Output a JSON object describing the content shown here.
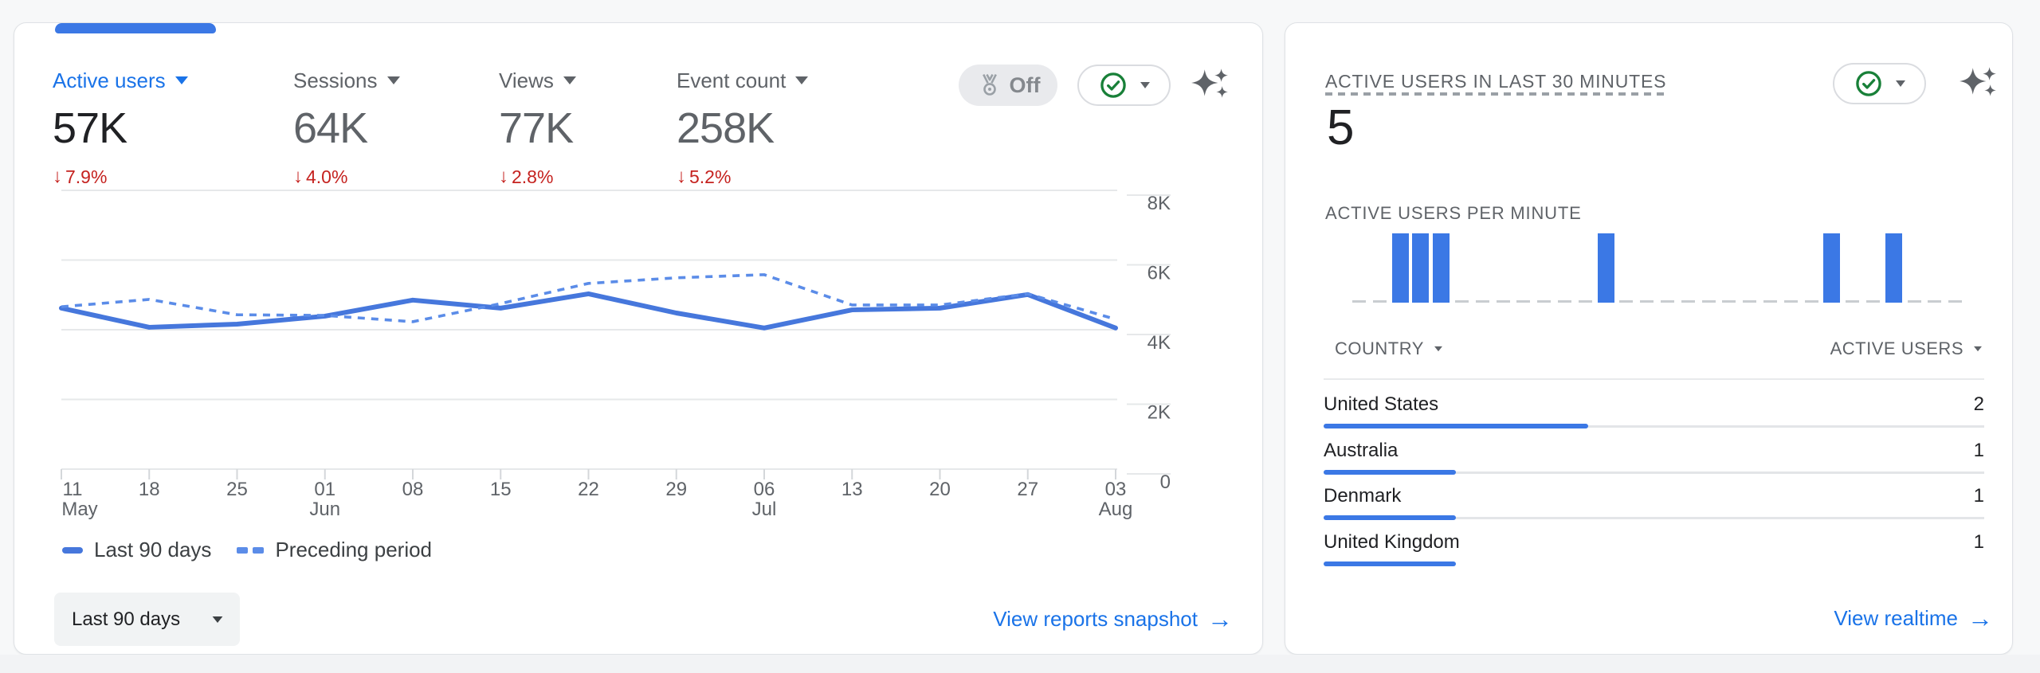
{
  "colors": {
    "accent_blue": "#1a73e8",
    "chart_line_solid": "#4677dc",
    "chart_line_dashed": "#5b8ce8",
    "realtime_bar_blue": "#3b78e5",
    "negative_red": "#c5221f",
    "check_green": "#188038",
    "text_dark": "#202124",
    "text_gray": "#5f6368"
  },
  "overview_card": {
    "metrics": [
      {
        "label": "Active users",
        "value": "57K",
        "delta": "7.9%",
        "direction": "down",
        "selected": true
      },
      {
        "label": "Sessions",
        "value": "64K",
        "delta": "4.0%",
        "direction": "down",
        "selected": false
      },
      {
        "label": "Views",
        "value": "77K",
        "delta": "2.8%",
        "direction": "down",
        "selected": false
      },
      {
        "label": "Event count",
        "value": "258K",
        "delta": "5.2%",
        "direction": "down",
        "selected": false
      }
    ],
    "benchmarking_badge": {
      "label": "Off",
      "icon": "medal-icon"
    },
    "data_quality_icon": "check-circle-icon",
    "insights_icon": "sparkles-icon",
    "chart_data": {
      "type": "line",
      "x_labels": [
        {
          "day": "11",
          "month": "May"
        },
        {
          "day": "18",
          "month": ""
        },
        {
          "day": "25",
          "month": ""
        },
        {
          "day": "01",
          "month": "Jun"
        },
        {
          "day": "08",
          "month": ""
        },
        {
          "day": "15",
          "month": ""
        },
        {
          "day": "22",
          "month": ""
        },
        {
          "day": "29",
          "month": ""
        },
        {
          "day": "06",
          "month": "Jul"
        },
        {
          "day": "13",
          "month": ""
        },
        {
          "day": "20",
          "month": ""
        },
        {
          "day": "27",
          "month": ""
        },
        {
          "day": "03",
          "month": "Aug"
        }
      ],
      "series": [
        {
          "name": "Last 90 days",
          "style": "solid",
          "values": [
            4620,
            4070,
            4160,
            4390,
            4850,
            4620,
            5030,
            4480,
            4050,
            4570,
            4620,
            5010,
            4050
          ]
        },
        {
          "name": "Preceding period",
          "style": "dashed",
          "values": [
            4660,
            4870,
            4430,
            4410,
            4230,
            4750,
            5330,
            5490,
            5580,
            4710,
            4710,
            5030,
            4300
          ]
        }
      ],
      "ylim": [
        0,
        8000
      ],
      "y_ticks": [
        0,
        2000,
        4000,
        6000,
        8000
      ],
      "y_tick_labels": [
        "0",
        "2K",
        "4K",
        "6K",
        "8K"
      ],
      "grid": true,
      "legend_position": "bottom-left"
    },
    "legend": [
      {
        "label": "Last 90 days",
        "style": "solid"
      },
      {
        "label": "Preceding period",
        "style": "dashed"
      }
    ],
    "date_range_button": {
      "label": "Last 90 days"
    },
    "footer_link": {
      "label": "View reports snapshot",
      "arrow": "→"
    }
  },
  "realtime_card": {
    "title": "ACTIVE USERS IN LAST 30 MINUTES",
    "active_users_now": "5",
    "per_minute_title": "ACTIVE USERS PER MINUTE",
    "chart_data": {
      "type": "bar",
      "x": "minutes (last 30)",
      "ylim": [
        0,
        1
      ],
      "values": [
        0,
        0,
        1,
        1,
        1,
        0,
        0,
        0,
        0,
        0,
        0,
        0,
        1,
        0,
        0,
        0,
        0,
        0,
        0,
        0,
        0,
        0,
        0,
        1,
        0,
        0,
        1,
        0,
        0,
        0
      ]
    },
    "table": {
      "columns": [
        "COUNTRY",
        "ACTIVE USERS"
      ],
      "rows": [
        {
          "country": "United States",
          "active_users": "2",
          "bar_fraction": 0.4
        },
        {
          "country": "Australia",
          "active_users": "1",
          "bar_fraction": 0.2
        },
        {
          "country": "Denmark",
          "active_users": "1",
          "bar_fraction": 0.2
        },
        {
          "country": "United Kingdom",
          "active_users": "1",
          "bar_fraction": 0.2
        }
      ]
    },
    "footer_link": {
      "label": "View realtime",
      "arrow": "→"
    }
  }
}
